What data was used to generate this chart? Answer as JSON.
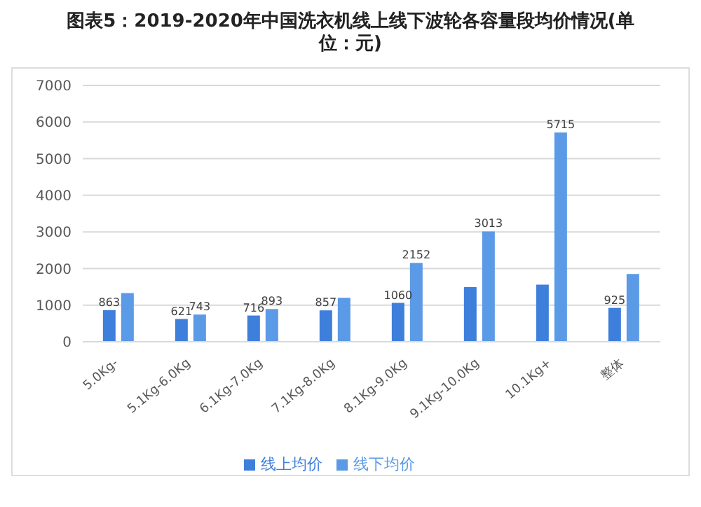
{
  "chart_data": {
    "type": "bar",
    "title": "图表5：2019-2020年中国洗衣机线上线下波轮各容量段均价情况(单位：元)",
    "categories": [
      "5.0Kg-",
      "5.1Kg-6.0Kg",
      "6.1Kg-7.0Kg",
      "7.1Kg-8.0Kg",
      "8.1Kg-9.0Kg",
      "9.1Kg-10.0Kg",
      "10.1Kg+",
      "整体"
    ],
    "series": [
      {
        "name": "线上均价",
        "color": "#3f7fdc",
        "values": [
          863,
          621,
          716,
          857,
          1060,
          1490,
          1560,
          925
        ],
        "value_labels": [
          "863",
          "621",
          "716",
          "857",
          "1060",
          null,
          null,
          "925"
        ]
      },
      {
        "name": "线下均价",
        "color": "#5b9ae6",
        "values": [
          1330,
          743,
          893,
          1200,
          2152,
          3013,
          5715,
          1850
        ],
        "value_labels": [
          null,
          "743",
          "893",
          null,
          "2152",
          "3013",
          "5715",
          null
        ]
      }
    ],
    "ylim": [
      0,
      7000
    ],
    "yticks": [
      0,
      1000,
      2000,
      3000,
      4000,
      5000,
      6000,
      7000
    ],
    "grid": "y",
    "legend": "bottom"
  }
}
